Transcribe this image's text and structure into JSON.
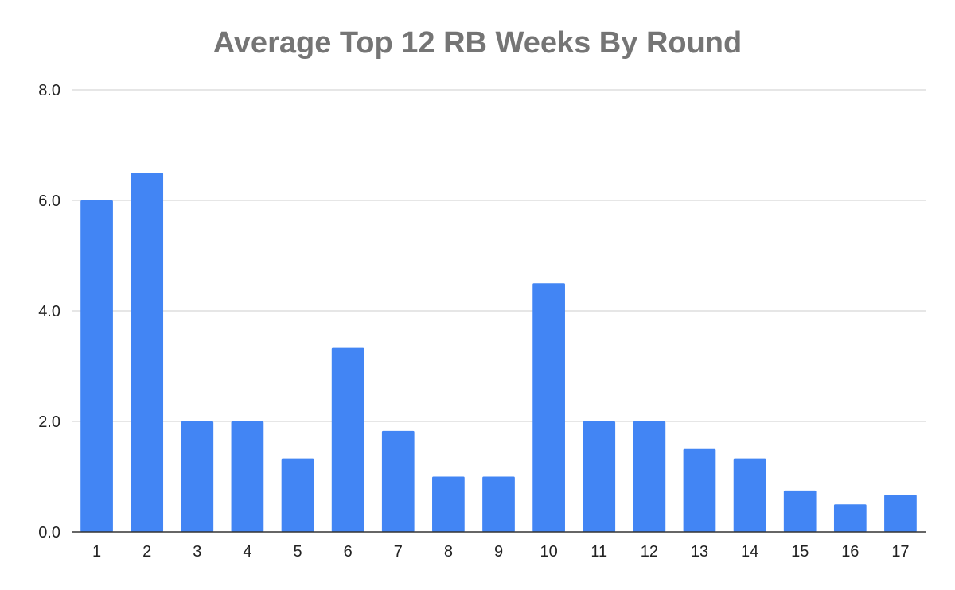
{
  "chart_data": {
    "type": "bar",
    "title": "Average Top 12 RB Weeks By Round",
    "xlabel": "",
    "ylabel": "",
    "categories": [
      "1",
      "2",
      "3",
      "4",
      "5",
      "6",
      "7",
      "8",
      "9",
      "10",
      "11",
      "12",
      "13",
      "14",
      "15",
      "16",
      "17"
    ],
    "series": [
      {
        "values": [
          6.0,
          6.5,
          2.0,
          2.0,
          1.33,
          3.33,
          1.83,
          1.0,
          1.0,
          4.5,
          2.0,
          2.0,
          1.5,
          1.33,
          0.75,
          0.5,
          0.67
        ],
        "color": "#4285f4"
      }
    ],
    "ylim": [
      0,
      8
    ],
    "yticks": [
      "0.0",
      "2.0",
      "4.0",
      "6.0",
      "8.0"
    ],
    "grid": true,
    "legend": "none"
  }
}
